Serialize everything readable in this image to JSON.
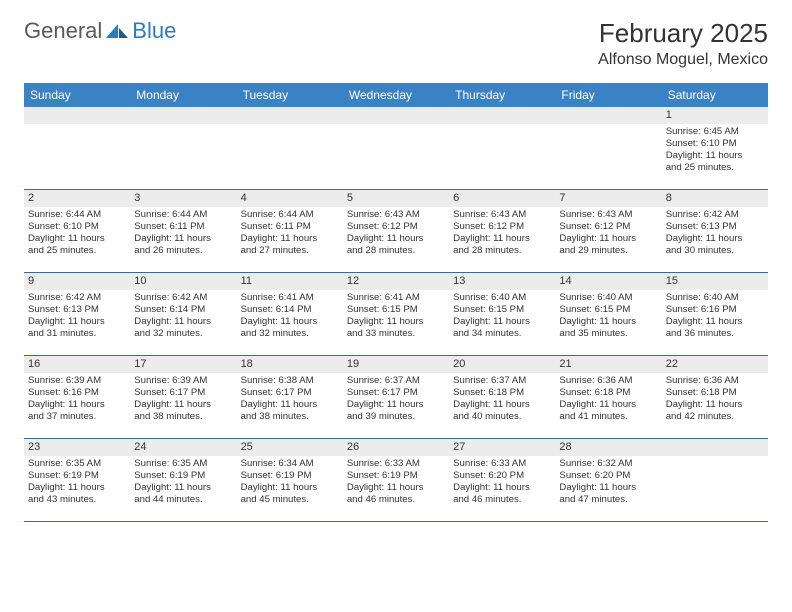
{
  "logo": {
    "text1": "General",
    "text2": "Blue"
  },
  "title": "February 2025",
  "location": "Alfonso Moguel, Mexico",
  "colors": {
    "header_bg": "#3b82c4",
    "header_text": "#ffffff",
    "date_bar_bg": "#ececec",
    "row_border": "#3b6a9a",
    "logo_gray": "#5a5a5a",
    "logo_blue": "#2b7bbd"
  },
  "day_names": [
    "Sunday",
    "Monday",
    "Tuesday",
    "Wednesday",
    "Thursday",
    "Friday",
    "Saturday"
  ],
  "weeks": [
    [
      {
        "blank": true
      },
      {
        "blank": true
      },
      {
        "blank": true
      },
      {
        "blank": true
      },
      {
        "blank": true
      },
      {
        "blank": true
      },
      {
        "date": "1",
        "sunrise": "Sunrise: 6:45 AM",
        "sunset": "Sunset: 6:10 PM",
        "daylight1": "Daylight: 11 hours",
        "daylight2": "and 25 minutes."
      }
    ],
    [
      {
        "date": "2",
        "sunrise": "Sunrise: 6:44 AM",
        "sunset": "Sunset: 6:10 PM",
        "daylight1": "Daylight: 11 hours",
        "daylight2": "and 25 minutes."
      },
      {
        "date": "3",
        "sunrise": "Sunrise: 6:44 AM",
        "sunset": "Sunset: 6:11 PM",
        "daylight1": "Daylight: 11 hours",
        "daylight2": "and 26 minutes."
      },
      {
        "date": "4",
        "sunrise": "Sunrise: 6:44 AM",
        "sunset": "Sunset: 6:11 PM",
        "daylight1": "Daylight: 11 hours",
        "daylight2": "and 27 minutes."
      },
      {
        "date": "5",
        "sunrise": "Sunrise: 6:43 AM",
        "sunset": "Sunset: 6:12 PM",
        "daylight1": "Daylight: 11 hours",
        "daylight2": "and 28 minutes."
      },
      {
        "date": "6",
        "sunrise": "Sunrise: 6:43 AM",
        "sunset": "Sunset: 6:12 PM",
        "daylight1": "Daylight: 11 hours",
        "daylight2": "and 28 minutes."
      },
      {
        "date": "7",
        "sunrise": "Sunrise: 6:43 AM",
        "sunset": "Sunset: 6:12 PM",
        "daylight1": "Daylight: 11 hours",
        "daylight2": "and 29 minutes."
      },
      {
        "date": "8",
        "sunrise": "Sunrise: 6:42 AM",
        "sunset": "Sunset: 6:13 PM",
        "daylight1": "Daylight: 11 hours",
        "daylight2": "and 30 minutes."
      }
    ],
    [
      {
        "date": "9",
        "sunrise": "Sunrise: 6:42 AM",
        "sunset": "Sunset: 6:13 PM",
        "daylight1": "Daylight: 11 hours",
        "daylight2": "and 31 minutes."
      },
      {
        "date": "10",
        "sunrise": "Sunrise: 6:42 AM",
        "sunset": "Sunset: 6:14 PM",
        "daylight1": "Daylight: 11 hours",
        "daylight2": "and 32 minutes."
      },
      {
        "date": "11",
        "sunrise": "Sunrise: 6:41 AM",
        "sunset": "Sunset: 6:14 PM",
        "daylight1": "Daylight: 11 hours",
        "daylight2": "and 32 minutes."
      },
      {
        "date": "12",
        "sunrise": "Sunrise: 6:41 AM",
        "sunset": "Sunset: 6:15 PM",
        "daylight1": "Daylight: 11 hours",
        "daylight2": "and 33 minutes."
      },
      {
        "date": "13",
        "sunrise": "Sunrise: 6:40 AM",
        "sunset": "Sunset: 6:15 PM",
        "daylight1": "Daylight: 11 hours",
        "daylight2": "and 34 minutes."
      },
      {
        "date": "14",
        "sunrise": "Sunrise: 6:40 AM",
        "sunset": "Sunset: 6:15 PM",
        "daylight1": "Daylight: 11 hours",
        "daylight2": "and 35 minutes."
      },
      {
        "date": "15",
        "sunrise": "Sunrise: 6:40 AM",
        "sunset": "Sunset: 6:16 PM",
        "daylight1": "Daylight: 11 hours",
        "daylight2": "and 36 minutes."
      }
    ],
    [
      {
        "date": "16",
        "sunrise": "Sunrise: 6:39 AM",
        "sunset": "Sunset: 6:16 PM",
        "daylight1": "Daylight: 11 hours",
        "daylight2": "and 37 minutes."
      },
      {
        "date": "17",
        "sunrise": "Sunrise: 6:39 AM",
        "sunset": "Sunset: 6:17 PM",
        "daylight1": "Daylight: 11 hours",
        "daylight2": "and 38 minutes."
      },
      {
        "date": "18",
        "sunrise": "Sunrise: 6:38 AM",
        "sunset": "Sunset: 6:17 PM",
        "daylight1": "Daylight: 11 hours",
        "daylight2": "and 38 minutes."
      },
      {
        "date": "19",
        "sunrise": "Sunrise: 6:37 AM",
        "sunset": "Sunset: 6:17 PM",
        "daylight1": "Daylight: 11 hours",
        "daylight2": "and 39 minutes."
      },
      {
        "date": "20",
        "sunrise": "Sunrise: 6:37 AM",
        "sunset": "Sunset: 6:18 PM",
        "daylight1": "Daylight: 11 hours",
        "daylight2": "and 40 minutes."
      },
      {
        "date": "21",
        "sunrise": "Sunrise: 6:36 AM",
        "sunset": "Sunset: 6:18 PM",
        "daylight1": "Daylight: 11 hours",
        "daylight2": "and 41 minutes."
      },
      {
        "date": "22",
        "sunrise": "Sunrise: 6:36 AM",
        "sunset": "Sunset: 6:18 PM",
        "daylight1": "Daylight: 11 hours",
        "daylight2": "and 42 minutes."
      }
    ],
    [
      {
        "date": "23",
        "sunrise": "Sunrise: 6:35 AM",
        "sunset": "Sunset: 6:19 PM",
        "daylight1": "Daylight: 11 hours",
        "daylight2": "and 43 minutes."
      },
      {
        "date": "24",
        "sunrise": "Sunrise: 6:35 AM",
        "sunset": "Sunset: 6:19 PM",
        "daylight1": "Daylight: 11 hours",
        "daylight2": "and 44 minutes."
      },
      {
        "date": "25",
        "sunrise": "Sunrise: 6:34 AM",
        "sunset": "Sunset: 6:19 PM",
        "daylight1": "Daylight: 11 hours",
        "daylight2": "and 45 minutes."
      },
      {
        "date": "26",
        "sunrise": "Sunrise: 6:33 AM",
        "sunset": "Sunset: 6:19 PM",
        "daylight1": "Daylight: 11 hours",
        "daylight2": "and 46 minutes."
      },
      {
        "date": "27",
        "sunrise": "Sunrise: 6:33 AM",
        "sunset": "Sunset: 6:20 PM",
        "daylight1": "Daylight: 11 hours",
        "daylight2": "and 46 minutes."
      },
      {
        "date": "28",
        "sunrise": "Sunrise: 6:32 AM",
        "sunset": "Sunset: 6:20 PM",
        "daylight1": "Daylight: 11 hours",
        "daylight2": "and 47 minutes."
      },
      {
        "blank": true
      }
    ]
  ]
}
